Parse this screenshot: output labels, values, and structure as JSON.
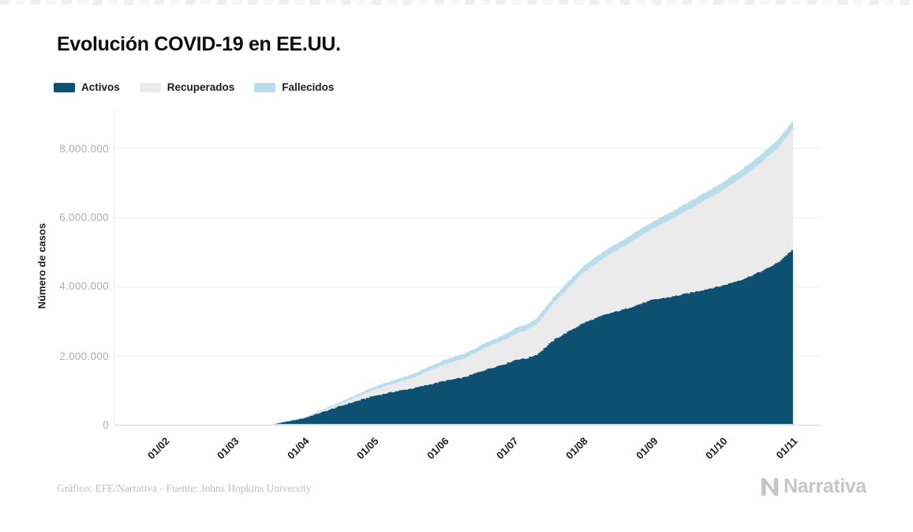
{
  "page": {
    "title": "Evolución COVID-19 en EE.UU.",
    "footer_credit": "Gráfico: EFE/Narrativa - Fuente: Johns Hopkins University",
    "brand": "Narrativa"
  },
  "legend": {
    "position": "top-left",
    "items": [
      {
        "label": "Activos",
        "color": "#0e5072"
      },
      {
        "label": "Recuperados",
        "color": "#ebebeb"
      },
      {
        "label": "Fallecidos",
        "color": "#b9ddeb"
      }
    ]
  },
  "chart_data": {
    "type": "area",
    "stacked": true,
    "render_style": "daily thin bars (stepped stacked area)",
    "title": "Evolución COVID-19 en EE.UU.",
    "xlabel": "",
    "ylabel": "Número de casos",
    "x_tick_labels": [
      "01/02",
      "01/03",
      "01/04",
      "01/05",
      "01/06",
      "01/07",
      "01/08",
      "01/09",
      "01/10",
      "01/11"
    ],
    "y_tick_labels": [
      "0",
      "2.000.000",
      "4.000.000",
      "6.000.000",
      "8.000.000"
    ],
    "y_tick_values": [
      0,
      2000000,
      4000000,
      6000000,
      8000000
    ],
    "ylim": [
      0,
      9100000
    ],
    "grid": "horizontal-only",
    "legend_position": "top-left",
    "x_unit": "months since 01/02/2020 (0 = 01/02 ... 9 = 01/11), data begins mid-March",
    "values_unit": "millions of cases",
    "series": [
      {
        "name": "Activos",
        "color": "#0e5072",
        "points": [
          [
            0,
            0
          ],
          [
            1,
            0
          ],
          [
            1.3,
            0.005
          ],
          [
            1.6,
            0.04
          ],
          [
            2,
            0.2
          ],
          [
            2.3,
            0.4
          ],
          [
            2.6,
            0.6
          ],
          [
            3,
            0.84
          ],
          [
            3.3,
            0.97
          ],
          [
            3.6,
            1.08
          ],
          [
            4,
            1.27
          ],
          [
            4.3,
            1.38
          ],
          [
            4.6,
            1.6
          ],
          [
            4.9,
            1.78
          ],
          [
            5.05,
            1.9
          ],
          [
            5.2,
            1.93
          ],
          [
            5.35,
            2.05
          ],
          [
            5.6,
            2.48
          ],
          [
            6,
            2.94
          ],
          [
            6.3,
            3.18
          ],
          [
            6.6,
            3.35
          ],
          [
            7,
            3.62
          ],
          [
            7.3,
            3.72
          ],
          [
            7.6,
            3.85
          ],
          [
            8,
            4.03
          ],
          [
            8.3,
            4.22
          ],
          [
            8.6,
            4.48
          ],
          [
            8.8,
            4.7
          ],
          [
            9,
            5.06
          ]
        ]
      },
      {
        "name": "Recuperados",
        "color": "#ebebeb",
        "points": [
          [
            0,
            0
          ],
          [
            1,
            0
          ],
          [
            1.3,
            0
          ],
          [
            1.6,
            0.005
          ],
          [
            2,
            0.015
          ],
          [
            2.5,
            0.06
          ],
          [
            3,
            0.17
          ],
          [
            3.5,
            0.28
          ],
          [
            4,
            0.47
          ],
          [
            4.5,
            0.6
          ],
          [
            5,
            0.73
          ],
          [
            5.3,
            0.85
          ],
          [
            5.6,
            1.08
          ],
          [
            6,
            1.45
          ],
          [
            6.5,
            1.77
          ],
          [
            7,
            2.05
          ],
          [
            7.5,
            2.4
          ],
          [
            8,
            2.75
          ],
          [
            8.5,
            3.1
          ],
          [
            9,
            3.45
          ]
        ]
      },
      {
        "name": "Fallecidos",
        "color": "#b9ddeb",
        "points": [
          [
            0,
            0
          ],
          [
            1,
            0
          ],
          [
            1.3,
            0.001
          ],
          [
            1.6,
            0.004
          ],
          [
            2,
            0.012
          ],
          [
            2.5,
            0.05
          ],
          [
            3,
            0.09
          ],
          [
            3.5,
            0.11
          ],
          [
            4,
            0.13
          ],
          [
            4.5,
            0.145
          ],
          [
            5,
            0.16
          ],
          [
            5.5,
            0.175
          ],
          [
            6,
            0.19
          ],
          [
            6.5,
            0.2
          ],
          [
            7,
            0.21
          ],
          [
            7.5,
            0.22
          ],
          [
            8,
            0.23
          ],
          [
            8.5,
            0.24
          ],
          [
            9,
            0.25
          ]
        ]
      }
    ],
    "stacked_total_at_end_millions": 8.76
  },
  "colors": {
    "background": "#ffffff",
    "title_text": "#0d0d0d",
    "x_tick_text": "#1b1b1b",
    "y_tick_text": "#adadad",
    "gridline": "#ededed",
    "baseline": "#e1e1e1",
    "axis_line": "#e8e8e8",
    "footer_text": "#bfbfbf",
    "brand_gray": "#c6c6c6"
  }
}
